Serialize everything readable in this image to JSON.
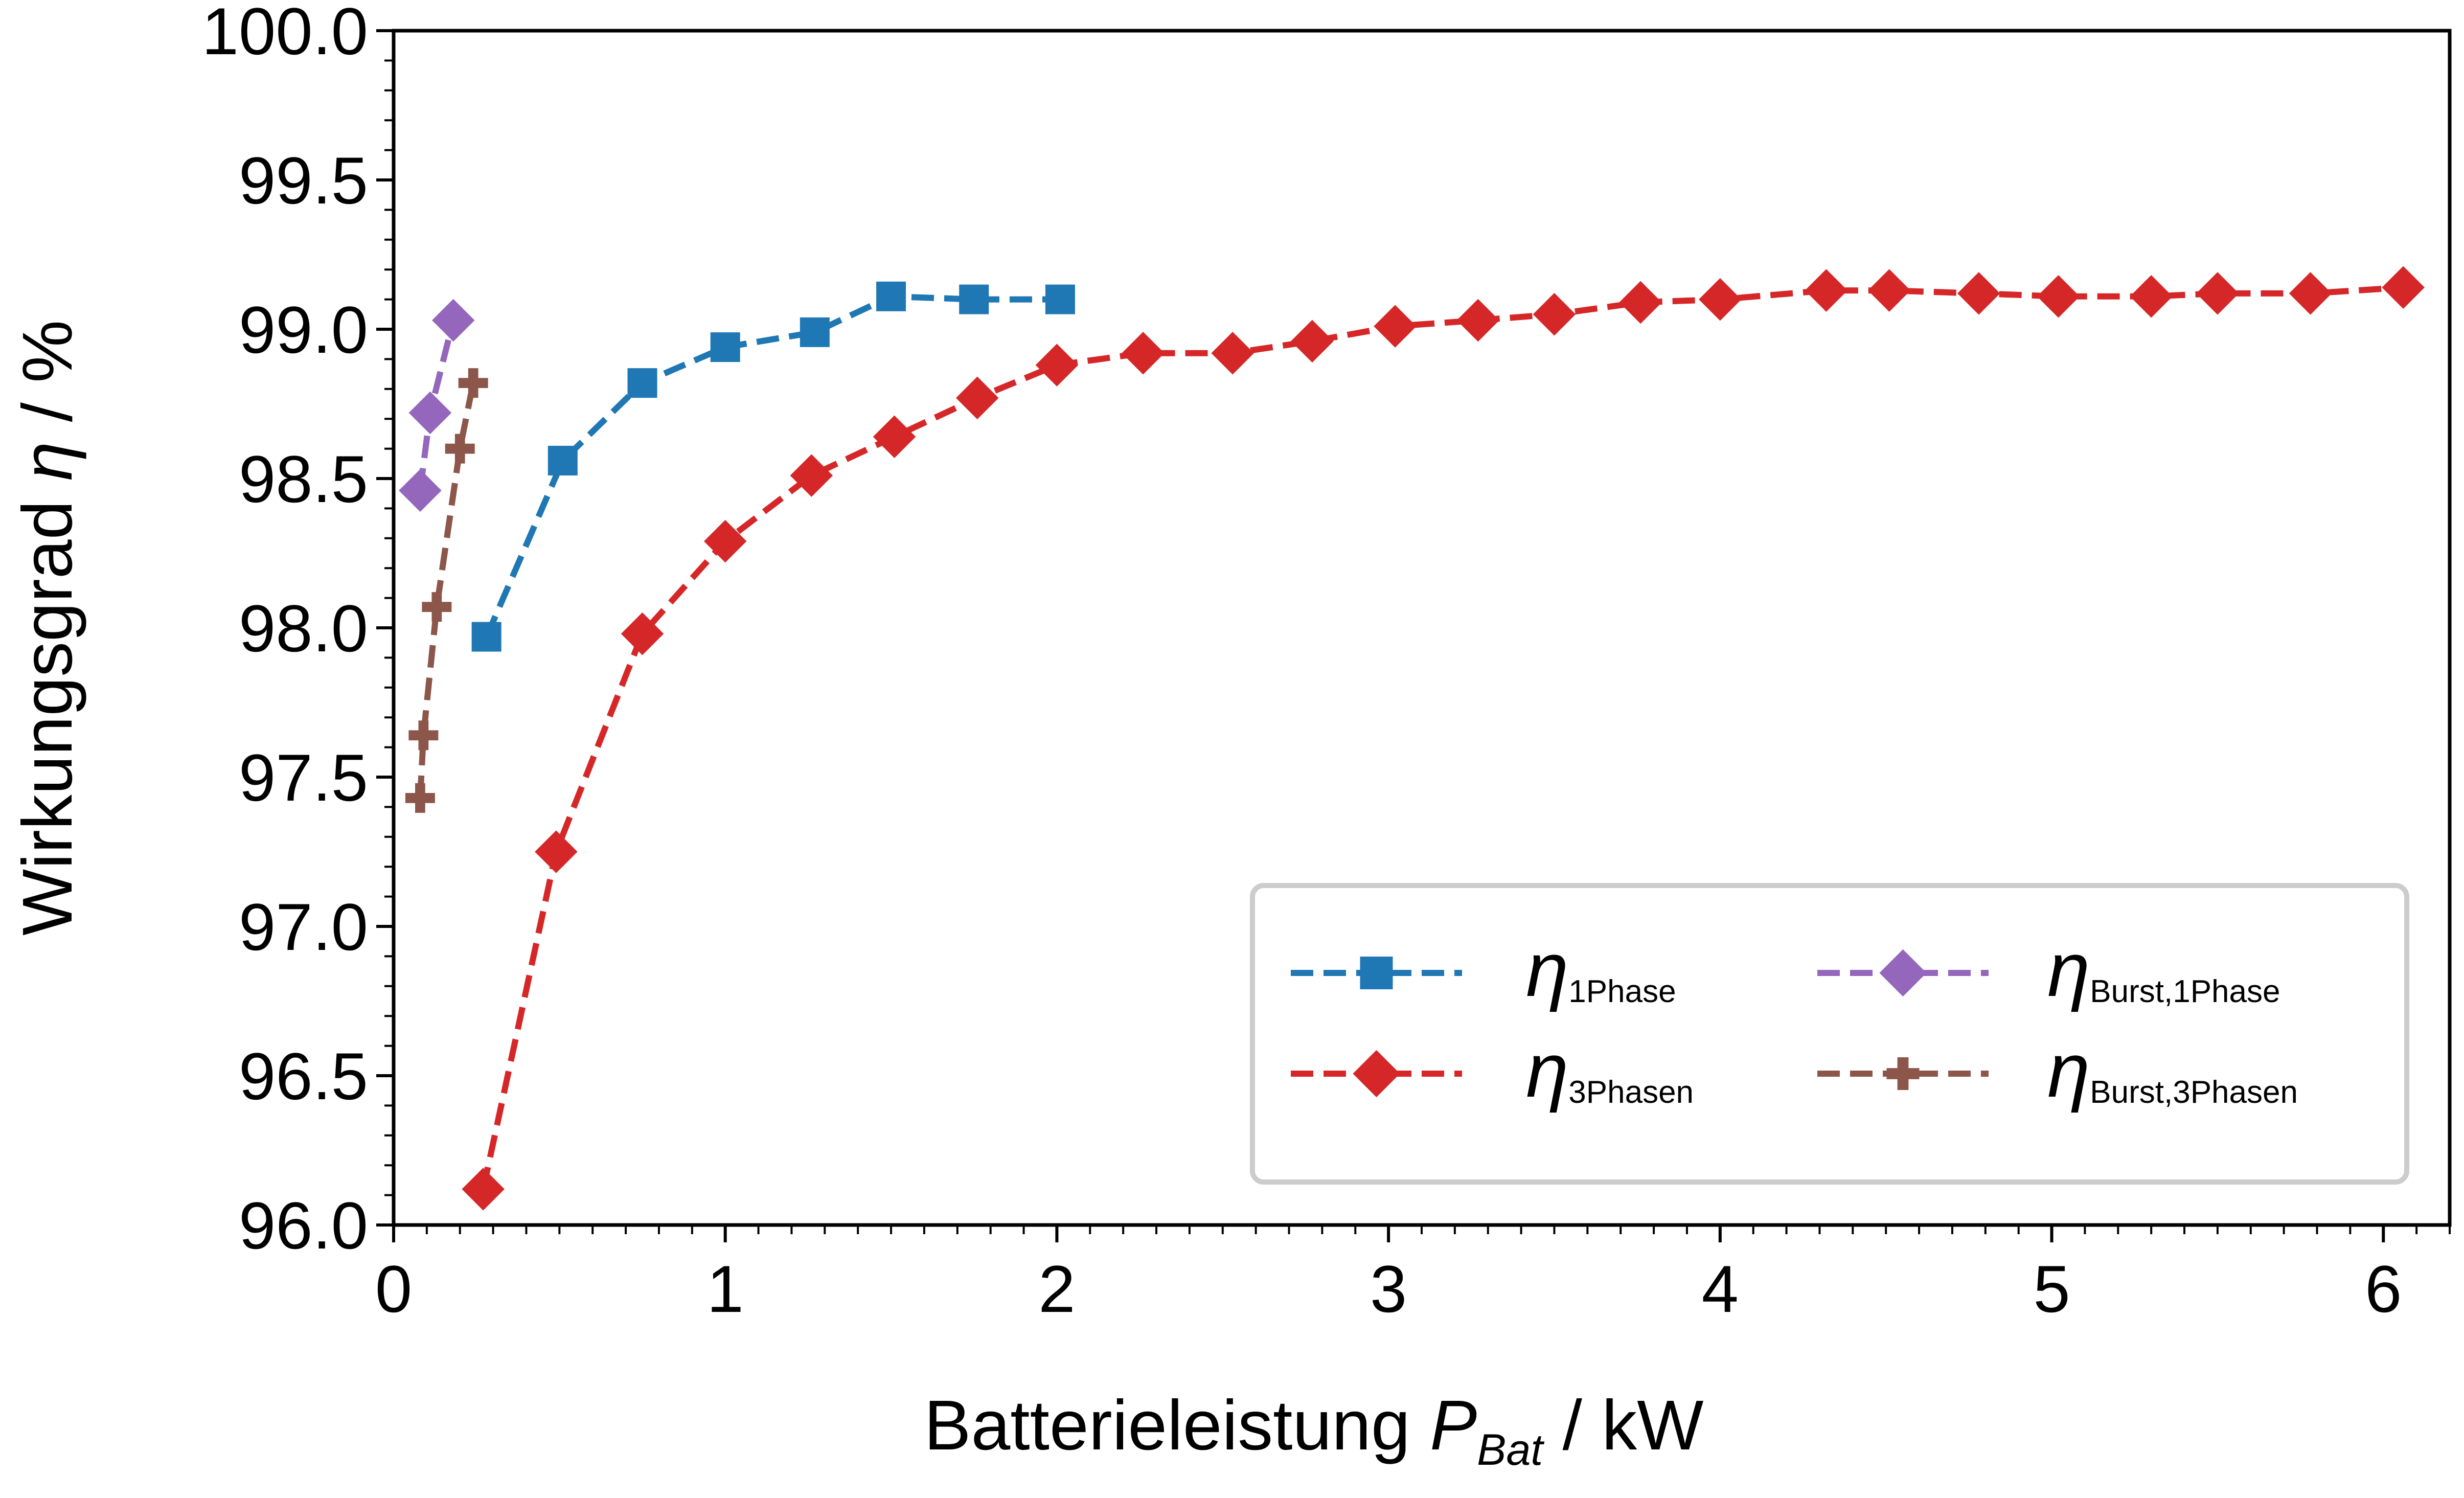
{
  "chart_data": {
    "type": "line",
    "xlabel": {
      "text": "Batterieleistung ",
      "symbol": "P",
      "subscript": "Bat",
      "unit": " / kW"
    },
    "ylabel": {
      "text": "Wirkungsgrad ",
      "symbol": "η",
      "unit": " / %"
    },
    "xlim": [
      0,
      6.2
    ],
    "ylim": [
      96.0,
      100.0
    ],
    "xticks": [
      0,
      1,
      2,
      3,
      4,
      5,
      6
    ],
    "xtick_labels": [
      "0",
      "1",
      "2",
      "3",
      "4",
      "5",
      "6"
    ],
    "yticks": [
      96.0,
      96.5,
      97.0,
      97.5,
      98.0,
      98.5,
      99.0,
      99.5,
      100.0
    ],
    "ytick_labels": [
      "96.0",
      "96.5",
      "97.0",
      "97.5",
      "98.0",
      "98.5",
      "99.0",
      "99.5",
      "100.0"
    ],
    "legend_position": "bottom-right",
    "series": [
      {
        "name": "η_1Phase",
        "symbol": "η",
        "subscript": "1Phase",
        "color": "#1f77b4",
        "marker": "square",
        "x": [
          0.28,
          0.51,
          0.75,
          1.0,
          1.27,
          1.5,
          1.75,
          2.01
        ],
        "y": [
          97.97,
          98.56,
          98.82,
          98.94,
          98.99,
          99.11,
          99.1,
          99.1
        ]
      },
      {
        "name": "η_3Phasen",
        "symbol": "η",
        "subscript": "3Phasen",
        "color": "#d62728",
        "marker": "diamond",
        "x": [
          0.27,
          0.49,
          0.75,
          1.0,
          1.26,
          1.51,
          1.76,
          2.0,
          2.26,
          2.53,
          2.77,
          3.02,
          3.27,
          3.5,
          3.76,
          4.0,
          4.32,
          4.51,
          4.78,
          5.02,
          5.3,
          5.5,
          5.78,
          6.06
        ],
        "y": [
          96.12,
          97.25,
          97.98,
          98.29,
          98.51,
          98.64,
          98.77,
          98.88,
          98.92,
          98.92,
          98.96,
          99.01,
          99.03,
          99.05,
          99.09,
          99.1,
          99.13,
          99.13,
          99.12,
          99.11,
          99.11,
          99.12,
          99.12,
          99.14
        ]
      },
      {
        "name": "η_Burst,1Phase",
        "symbol": "η",
        "subscript": "Burst,1Phase",
        "color": "#9467bd",
        "marker": "diamond",
        "x": [
          0.08,
          0.11,
          0.18
        ],
        "y": [
          98.46,
          98.72,
          99.03
        ]
      },
      {
        "name": "η_Burst,3Phasen",
        "symbol": "η",
        "subscript": "Burst,3Phasen",
        "color": "#8c564b",
        "marker": "plus",
        "x": [
          0.08,
          0.09,
          0.13,
          0.2,
          0.24
        ],
        "y": [
          97.43,
          97.64,
          98.07,
          98.6,
          98.82
        ]
      }
    ]
  }
}
